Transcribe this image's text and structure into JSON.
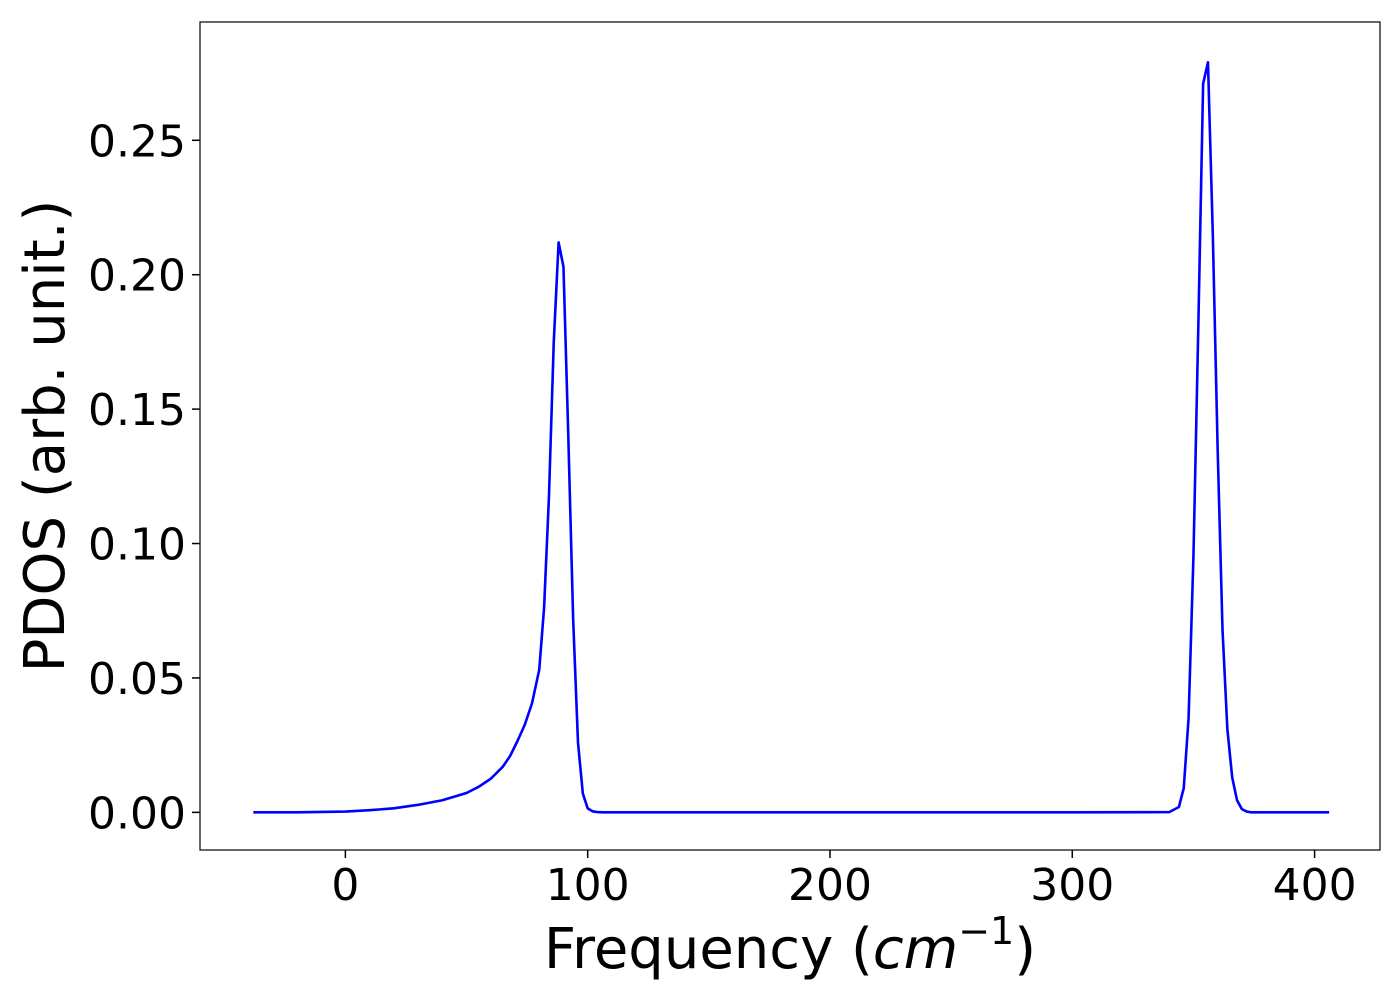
{
  "chart_data": {
    "type": "line",
    "title": "",
    "xlabel_prefix": "Frequency (",
    "xlabel_unit": "cm",
    "xlabel_exponent": "−1",
    "xlabel_suffix": ")",
    "ylabel": "PDOS (arb. unit.)",
    "xlim": [
      -60,
      427
    ],
    "ylim": [
      -0.014,
      0.294
    ],
    "x_ticks": [
      0,
      100,
      200,
      300,
      400
    ],
    "x_tick_labels": [
      "0",
      "100",
      "200",
      "300",
      "400"
    ],
    "y_ticks": [
      0.0,
      0.05,
      0.1,
      0.15,
      0.2,
      0.25
    ],
    "y_tick_labels": [
      "0.00",
      "0.05",
      "0.10",
      "0.15",
      "0.20",
      "0.25"
    ],
    "grid": false,
    "legend": "none",
    "series": [
      {
        "color": "#0000ff",
        "x": [
          -38,
          -20,
          0,
          10,
          20,
          30,
          40,
          50,
          55,
          60,
          65,
          68,
          71,
          74,
          77,
          80,
          82,
          84,
          86,
          88,
          90,
          92,
          94,
          96,
          98,
          100,
          102,
          104,
          106,
          110,
          120,
          200,
          300,
          340,
          344,
          346,
          348,
          350,
          352,
          354,
          356,
          358,
          360,
          362,
          364,
          366,
          368,
          370,
          372,
          374,
          376,
          378,
          380,
          390,
          406
        ],
        "y": [
          0.0,
          0.0,
          0.0003,
          0.0008,
          0.0015,
          0.0028,
          0.0045,
          0.0072,
          0.0095,
          0.0125,
          0.017,
          0.021,
          0.0265,
          0.0325,
          0.0405,
          0.053,
          0.076,
          0.117,
          0.175,
          0.212,
          0.203,
          0.14,
          0.072,
          0.026,
          0.007,
          0.0015,
          0.0004,
          0.0001,
          0.0,
          0.0,
          0.0,
          0.0,
          0.0,
          0.0001,
          0.002,
          0.009,
          0.035,
          0.095,
          0.18,
          0.271,
          0.279,
          0.215,
          0.135,
          0.068,
          0.031,
          0.013,
          0.0045,
          0.0012,
          0.0003,
          0.0,
          0.0,
          0.0,
          0.0,
          0.0,
          0.0
        ]
      }
    ]
  }
}
